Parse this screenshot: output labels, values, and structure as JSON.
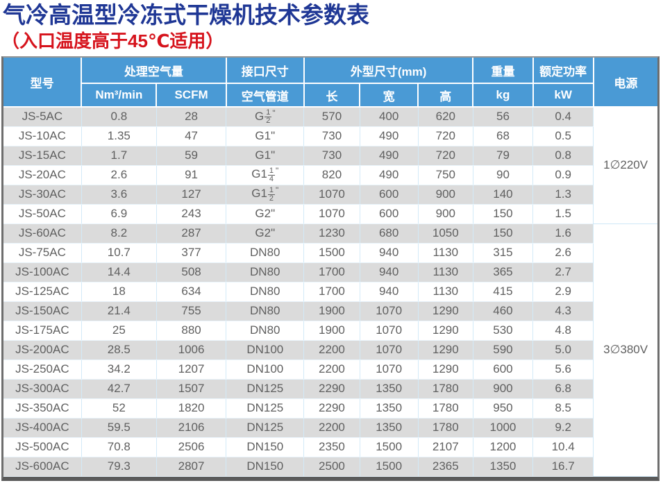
{
  "page": {
    "title": "气冷高温型冷冻式干燥机技术参数表",
    "subtitle": "（入口温度高于45℃适用）",
    "title_color": "#1F3795",
    "subtitle_color": "#D6131C"
  },
  "table": {
    "colors": {
      "header_bg": "#4A9AD5",
      "row_odd": "#DBDBDB",
      "row_even": "#FFFFFF"
    },
    "header": {
      "model": "型号",
      "air_volume": "处理空气量",
      "air_volume_units": [
        "Nm³/min",
        "SCFM"
      ],
      "port_size": "接口尺寸",
      "port_sub": "空气管道",
      "dimensions": "外型尺寸(mm)",
      "dimension_subs": [
        "长",
        "宽",
        "高"
      ],
      "weight": "重量",
      "weight_unit": "kg",
      "power_rating": "额定功率",
      "power_rating_unit": "kW",
      "power_supply": "电源"
    },
    "rows": [
      {
        "model": "JS-5AC",
        "nm3": "0.8",
        "scfm": "28",
        "pipe": {
          "text": "G",
          "frac": "1/2"
        },
        "len": "570",
        "wid": "400",
        "hgt": "620",
        "kg": "56",
        "kw": "0.4"
      },
      {
        "model": "JS-10AC",
        "nm3": "1.35",
        "scfm": "47",
        "pipe": {
          "text": "G1\""
        },
        "len": "730",
        "wid": "490",
        "hgt": "720",
        "kg": "68",
        "kw": "0.5"
      },
      {
        "model": "JS-15AC",
        "nm3": "1.7",
        "scfm": "59",
        "pipe": {
          "text": "G1\""
        },
        "len": "730",
        "wid": "490",
        "hgt": "720",
        "kg": "79",
        "kw": "0.8"
      },
      {
        "model": "JS-20AC",
        "nm3": "2.6",
        "scfm": "91",
        "pipe": {
          "text": "G1",
          "frac": "1/4"
        },
        "len": "820",
        "wid": "490",
        "hgt": "750",
        "kg": "90",
        "kw": "0.9"
      },
      {
        "model": "JS-30AC",
        "nm3": "3.6",
        "scfm": "127",
        "pipe": {
          "text": "G1",
          "frac": "1/2"
        },
        "len": "1070",
        "wid": "600",
        "hgt": "900",
        "kg": "140",
        "kw": "1.3"
      },
      {
        "model": "JS-50AC",
        "nm3": "6.9",
        "scfm": "243",
        "pipe": {
          "text": "G2\""
        },
        "len": "1070",
        "wid": "600",
        "hgt": "900",
        "kg": "150",
        "kw": "1.5"
      },
      {
        "model": "JS-60AC",
        "nm3": "8.2",
        "scfm": "287",
        "pipe": {
          "text": "G2\""
        },
        "len": "1230",
        "wid": "680",
        "hgt": "1050",
        "kg": "150",
        "kw": "1.6"
      },
      {
        "model": "JS-75AC",
        "nm3": "10.7",
        "scfm": "377",
        "pipe": {
          "text": "DN80"
        },
        "len": "1500",
        "wid": "940",
        "hgt": "1130",
        "kg": "315",
        "kw": "2.6"
      },
      {
        "model": "JS-100AC",
        "nm3": "14.4",
        "scfm": "508",
        "pipe": {
          "text": "DN80"
        },
        "len": "1700",
        "wid": "940",
        "hgt": "1130",
        "kg": "365",
        "kw": "2.7"
      },
      {
        "model": "JS-125AC",
        "nm3": "18",
        "scfm": "634",
        "pipe": {
          "text": "DN80"
        },
        "len": "1700",
        "wid": "940",
        "hgt": "1130",
        "kg": "415",
        "kw": "2.9"
      },
      {
        "model": "JS-150AC",
        "nm3": "21.4",
        "scfm": "755",
        "pipe": {
          "text": "DN80"
        },
        "len": "1900",
        "wid": "1070",
        "hgt": "1290",
        "kg": "460",
        "kw": "4.3"
      },
      {
        "model": "JS-175AC",
        "nm3": "25",
        "scfm": "880",
        "pipe": {
          "text": "DN80"
        },
        "len": "1900",
        "wid": "1070",
        "hgt": "1290",
        "kg": "530",
        "kw": "4.8"
      },
      {
        "model": "JS-200AC",
        "nm3": "28.5",
        "scfm": "1006",
        "pipe": {
          "text": "DN100"
        },
        "len": "2200",
        "wid": "1070",
        "hgt": "1290",
        "kg": "590",
        "kw": "5.0"
      },
      {
        "model": "JS-250AC",
        "nm3": "34.2",
        "scfm": "1207",
        "pipe": {
          "text": "DN100"
        },
        "len": "2200",
        "wid": "1070",
        "hgt": "1290",
        "kg": "600",
        "kw": "5.6"
      },
      {
        "model": "JS-300AC",
        "nm3": "42.7",
        "scfm": "1507",
        "pipe": {
          "text": "DN125"
        },
        "len": "2290",
        "wid": "1350",
        "hgt": "1780",
        "kg": "900",
        "kw": "6.8"
      },
      {
        "model": "JS-350AC",
        "nm3": "52",
        "scfm": "1820",
        "pipe": {
          "text": "DN125"
        },
        "len": "2290",
        "wid": "1350",
        "hgt": "1780",
        "kg": "950",
        "kw": "8.5"
      },
      {
        "model": "JS-400AC",
        "nm3": "59.5",
        "scfm": "2106",
        "pipe": {
          "text": "DN125"
        },
        "len": "2200",
        "wid": "1350",
        "hgt": "1780",
        "kg": "1000",
        "kw": "9.2"
      },
      {
        "model": "JS-500AC",
        "nm3": "70.8",
        "scfm": "2506",
        "pipe": {
          "text": "DN150"
        },
        "len": "2350",
        "wid": "1500",
        "hgt": "2107",
        "kg": "1200",
        "kw": "10.4"
      },
      {
        "model": "JS-600AC",
        "nm3": "79.3",
        "scfm": "2807",
        "pipe": {
          "text": "DN150"
        },
        "len": "2500",
        "wid": "1500",
        "hgt": "2365",
        "kg": "1350",
        "kw": "16.7"
      }
    ],
    "power_groups": [
      {
        "label": "1∅220V",
        "rows": 6
      },
      {
        "label": "3∅380V",
        "rows": 13
      }
    ]
  }
}
